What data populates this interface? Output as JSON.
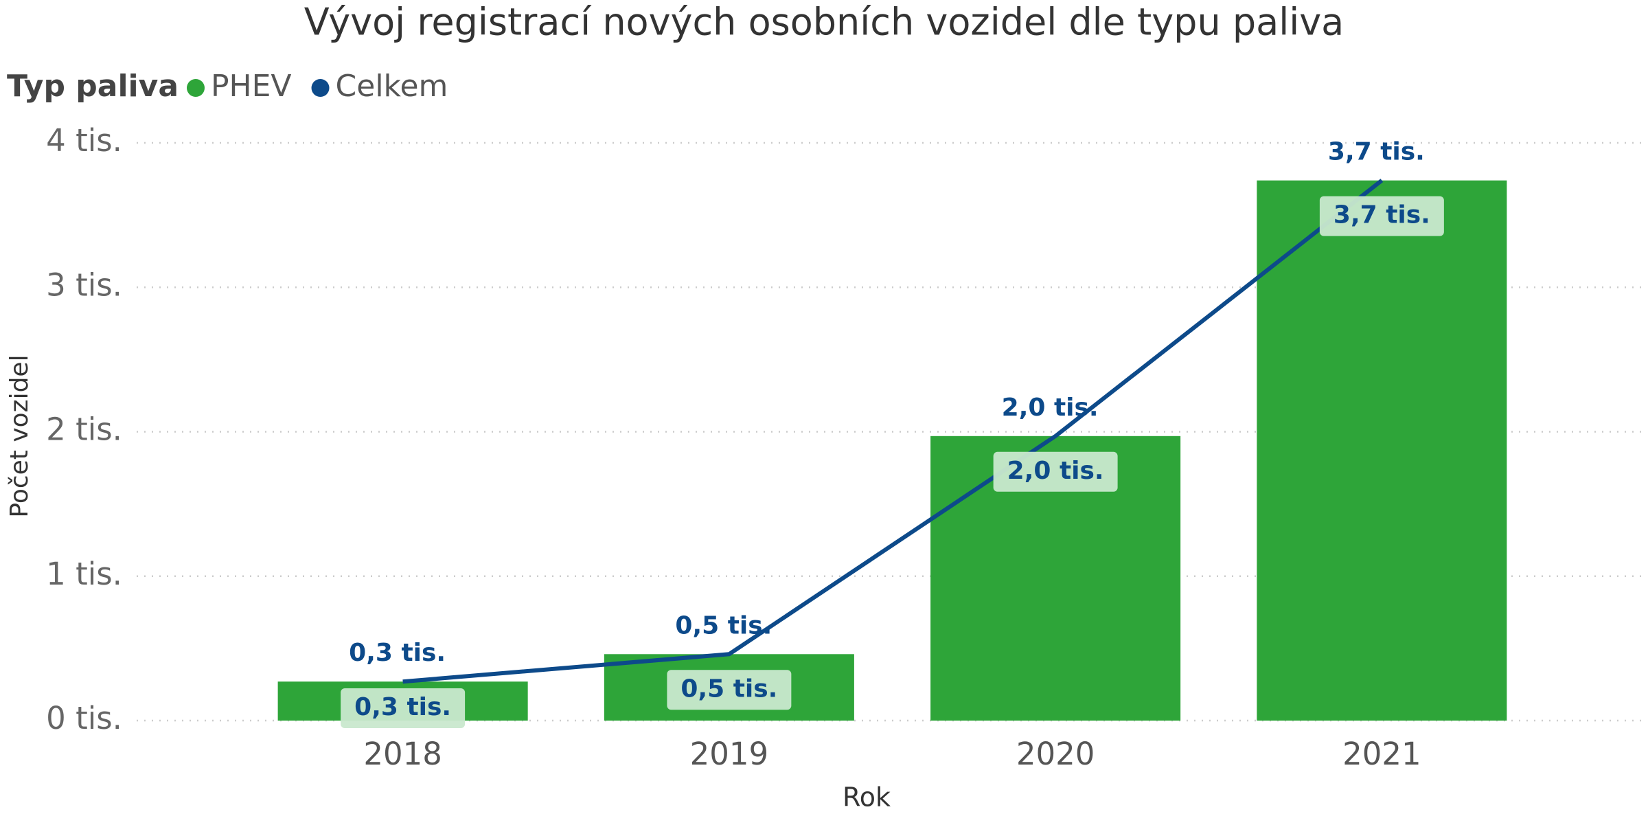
{
  "chart_data": {
    "type": "bar_line",
    "title": "Vývoj registrací nových osobních vozidel dle typu paliva",
    "legend_title": "Typ paliva",
    "x_label": "Rok",
    "y_label": "Počet vozidel",
    "categories": [
      "2018",
      "2019",
      "2020",
      "2021"
    ],
    "series": [
      {
        "name": "PHEV",
        "type": "bar",
        "color": "#2ea539",
        "values": [
          270,
          460,
          1970,
          3740
        ],
        "value_labels": [
          "0,3 tis.",
          "0,5 tis.",
          "2,0 tis.",
          "3,7 tis."
        ]
      },
      {
        "name": "Celkem",
        "type": "line",
        "color": "#0d4a8a",
        "values": [
          270,
          460,
          1970,
          3740
        ],
        "value_labels": [
          "0,3 tis.",
          "0,5 tis.",
          "2,0 tis.",
          "3,7 tis."
        ]
      }
    ],
    "ylim": [
      0,
      4000
    ],
    "yticks": [
      {
        "value": 0,
        "label": "0 tis."
      },
      {
        "value": 1000,
        "label": "1 tis."
      },
      {
        "value": 2000,
        "label": "2 tis."
      },
      {
        "value": 3000,
        "label": "3 tis."
      },
      {
        "value": 4000,
        "label": "4 tis."
      }
    ],
    "grid": true,
    "legend_position": "top-left"
  }
}
